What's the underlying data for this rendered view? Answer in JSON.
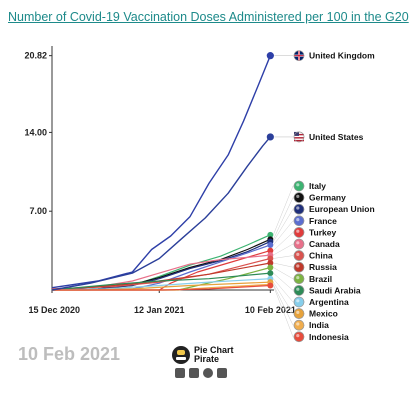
{
  "chart_data": {
    "type": "line",
    "title": "Number of Covid-19 Vaccination Doses Administered per 100 in the G20",
    "date_label": "10 Feb 2021",
    "x_start": "2020-12-15",
    "x_end": "2021-02-10",
    "xlim": [
      "2020-12-15",
      "2021-02-12"
    ],
    "ylim": [
      0,
      21.5
    ],
    "y_ticks": [
      {
        "value": 7.0,
        "label": "7.00"
      },
      {
        "value": 14.0,
        "label": "14.00"
      },
      {
        "value": 20.82,
        "label": "20.82"
      }
    ],
    "x_ticks": [
      {
        "date": "2020-12-15",
        "label": "15 Dec 2020"
      },
      {
        "date": "2021-01-12",
        "label": "12 Jan 2021"
      },
      {
        "date": "2021-02-10",
        "label": "10 Feb 2021"
      }
    ],
    "grid": false,
    "legend": "right",
    "series": [
      {
        "name": "United Kingdom",
        "color": "#2e3fa8",
        "icon": "uk-flag-icon",
        "labeled": true,
        "points": [
          [
            "2020-12-15",
            0.2
          ],
          [
            "2020-12-27",
            0.8
          ],
          [
            "2021-01-05",
            1.6
          ],
          [
            "2021-01-10",
            3.6
          ],
          [
            "2021-01-15",
            4.8
          ],
          [
            "2021-01-20",
            6.5
          ],
          [
            "2021-01-25",
            9.5
          ],
          [
            "2021-01-30",
            12.0
          ],
          [
            "2021-02-03",
            15.0
          ],
          [
            "2021-02-07",
            18.3
          ],
          [
            "2021-02-10",
            20.82
          ]
        ]
      },
      {
        "name": "United States",
        "color": "#2b3f9a",
        "icon": "us-flag-icon",
        "labeled": true,
        "points": [
          [
            "2020-12-15",
            0.0
          ],
          [
            "2020-12-25",
            0.6
          ],
          [
            "2021-01-05",
            1.5
          ],
          [
            "2021-01-12",
            2.8
          ],
          [
            "2021-01-18",
            4.6
          ],
          [
            "2021-01-24",
            6.4
          ],
          [
            "2021-01-30",
            8.6
          ],
          [
            "2021-02-04",
            11.0
          ],
          [
            "2021-02-08",
            12.8
          ],
          [
            "2021-02-10",
            13.6
          ]
        ]
      },
      {
        "name": "Italy",
        "color": "#3cb371",
        "icon": "italy-flag-icon",
        "points": [
          [
            "2020-12-15",
            0
          ],
          [
            "2020-12-27",
            0.1
          ],
          [
            "2021-01-05",
            0.4
          ],
          [
            "2021-01-12",
            1.2
          ],
          [
            "2021-01-20",
            2.2
          ],
          [
            "2021-01-28",
            3.0
          ],
          [
            "2021-02-04",
            4.0
          ],
          [
            "2021-02-10",
            4.9
          ]
        ]
      },
      {
        "name": "Germany",
        "color": "#111111",
        "icon": "germany-flag-icon",
        "points": [
          [
            "2020-12-15",
            0
          ],
          [
            "2020-12-27",
            0.1
          ],
          [
            "2021-01-05",
            0.5
          ],
          [
            "2021-01-12",
            1.1
          ],
          [
            "2021-01-20",
            2.0
          ],
          [
            "2021-01-28",
            2.7
          ],
          [
            "2021-02-04",
            3.6
          ],
          [
            "2021-02-10",
            4.5
          ]
        ]
      },
      {
        "name": "European Union",
        "color": "#1f2f7a",
        "icon": "eu-flag-icon",
        "points": [
          [
            "2020-12-15",
            0
          ],
          [
            "2020-12-27",
            0.1
          ],
          [
            "2021-01-05",
            0.4
          ],
          [
            "2021-01-12",
            1.0
          ],
          [
            "2021-01-20",
            1.9
          ],
          [
            "2021-01-28",
            2.6
          ],
          [
            "2021-02-04",
            3.4
          ],
          [
            "2021-02-10",
            4.3
          ]
        ]
      },
      {
        "name": "France",
        "color": "#5b6ed0",
        "icon": "france-flag-icon",
        "points": [
          [
            "2020-12-15",
            0
          ],
          [
            "2021-01-05",
            0.1
          ],
          [
            "2021-01-12",
            0.6
          ],
          [
            "2021-01-20",
            1.6
          ],
          [
            "2021-01-28",
            2.5
          ],
          [
            "2021-02-04",
            3.3
          ],
          [
            "2021-02-10",
            4.0
          ]
        ]
      },
      {
        "name": "Turkey",
        "color": "#e03c3c",
        "icon": "turkey-flag-icon",
        "points": [
          [
            "2020-12-15",
            0
          ],
          [
            "2021-01-12",
            0.0
          ],
          [
            "2021-01-15",
            0.6
          ],
          [
            "2021-01-22",
            1.6
          ],
          [
            "2021-01-30",
            2.4
          ],
          [
            "2021-02-05",
            3.0
          ],
          [
            "2021-02-10",
            3.5
          ]
        ]
      },
      {
        "name": "Canada",
        "color": "#e8708a",
        "icon": "canada-flag-icon",
        "points": [
          [
            "2020-12-15",
            0
          ],
          [
            "2020-12-27",
            0.3
          ],
          [
            "2021-01-05",
            0.8
          ],
          [
            "2021-01-12",
            1.5
          ],
          [
            "2021-01-20",
            2.3
          ],
          [
            "2021-01-28",
            2.7
          ],
          [
            "2021-02-04",
            2.9
          ],
          [
            "2021-02-10",
            3.1
          ]
        ]
      },
      {
        "name": "China",
        "color": "#d9534f",
        "icon": "china-flag-icon",
        "points": [
          [
            "2020-12-15",
            0.1
          ],
          [
            "2020-12-31",
            0.3
          ],
          [
            "2021-01-12",
            0.7
          ],
          [
            "2021-01-25",
            1.4
          ],
          [
            "2021-02-10",
            2.8
          ]
        ]
      },
      {
        "name": "Russia",
        "color": "#c0392b",
        "icon": "russia-flag-icon",
        "points": [
          [
            "2020-12-15",
            0
          ],
          [
            "2020-12-31",
            0.4
          ],
          [
            "2021-01-12",
            0.8
          ],
          [
            "2021-01-25",
            1.4
          ],
          [
            "2021-02-10",
            2.4
          ]
        ]
      },
      {
        "name": "Brazil",
        "color": "#7cb342",
        "icon": "brazil-flag-icon",
        "points": [
          [
            "2020-12-15",
            0
          ],
          [
            "2021-01-17",
            0
          ],
          [
            "2021-01-22",
            0.4
          ],
          [
            "2021-01-30",
            1.0
          ],
          [
            "2021-02-10",
            2.0
          ]
        ]
      },
      {
        "name": "Saudi Arabia",
        "color": "#2e8b57",
        "icon": "saudi-arabia-flag-icon",
        "points": [
          [
            "2020-12-15",
            0
          ],
          [
            "2020-12-31",
            0.5
          ],
          [
            "2021-01-12",
            0.8
          ],
          [
            "2021-01-25",
            1.0
          ],
          [
            "2021-02-10",
            1.5
          ]
        ]
      },
      {
        "name": "Argentina",
        "color": "#87ceeb",
        "icon": "argentina-flag-icon",
        "points": [
          [
            "2020-12-15",
            0
          ],
          [
            "2020-12-29",
            0.1
          ],
          [
            "2021-01-12",
            0.4
          ],
          [
            "2021-01-25",
            0.7
          ],
          [
            "2021-02-10",
            1.0
          ]
        ]
      },
      {
        "name": "Mexico",
        "color": "#e6a23c",
        "icon": "mexico-flag-icon",
        "points": [
          [
            "2020-12-15",
            0
          ],
          [
            "2020-12-24",
            0.0
          ],
          [
            "2021-01-05",
            0.1
          ],
          [
            "2021-01-20",
            0.4
          ],
          [
            "2021-02-10",
            0.7
          ]
        ]
      },
      {
        "name": "India",
        "color": "#f0ad4e",
        "icon": "india-flag-icon",
        "points": [
          [
            "2020-12-15",
            0
          ],
          [
            "2021-01-16",
            0
          ],
          [
            "2021-01-25",
            0.2
          ],
          [
            "2021-02-10",
            0.5
          ]
        ]
      },
      {
        "name": "Indonesia",
        "color": "#e74c3c",
        "icon": "indonesia-flag-icon",
        "points": [
          [
            "2020-12-15",
            0
          ],
          [
            "2021-01-13",
            0
          ],
          [
            "2021-01-25",
            0.1
          ],
          [
            "2021-02-10",
            0.4
          ]
        ]
      }
    ],
    "legend_colors": {
      "uk_flag": [
        "#012169",
        "#ffffff",
        "#c8102e"
      ],
      "us_flag": [
        "#3c3b6e",
        "#ffffff",
        "#b22234"
      ]
    }
  },
  "brand": {
    "name_line1": "Pie Chart",
    "name_line2": "Pirate",
    "social_icons": [
      "youtube-icon",
      "facebook-icon",
      "reddit-icon",
      "instagram-icon"
    ]
  }
}
